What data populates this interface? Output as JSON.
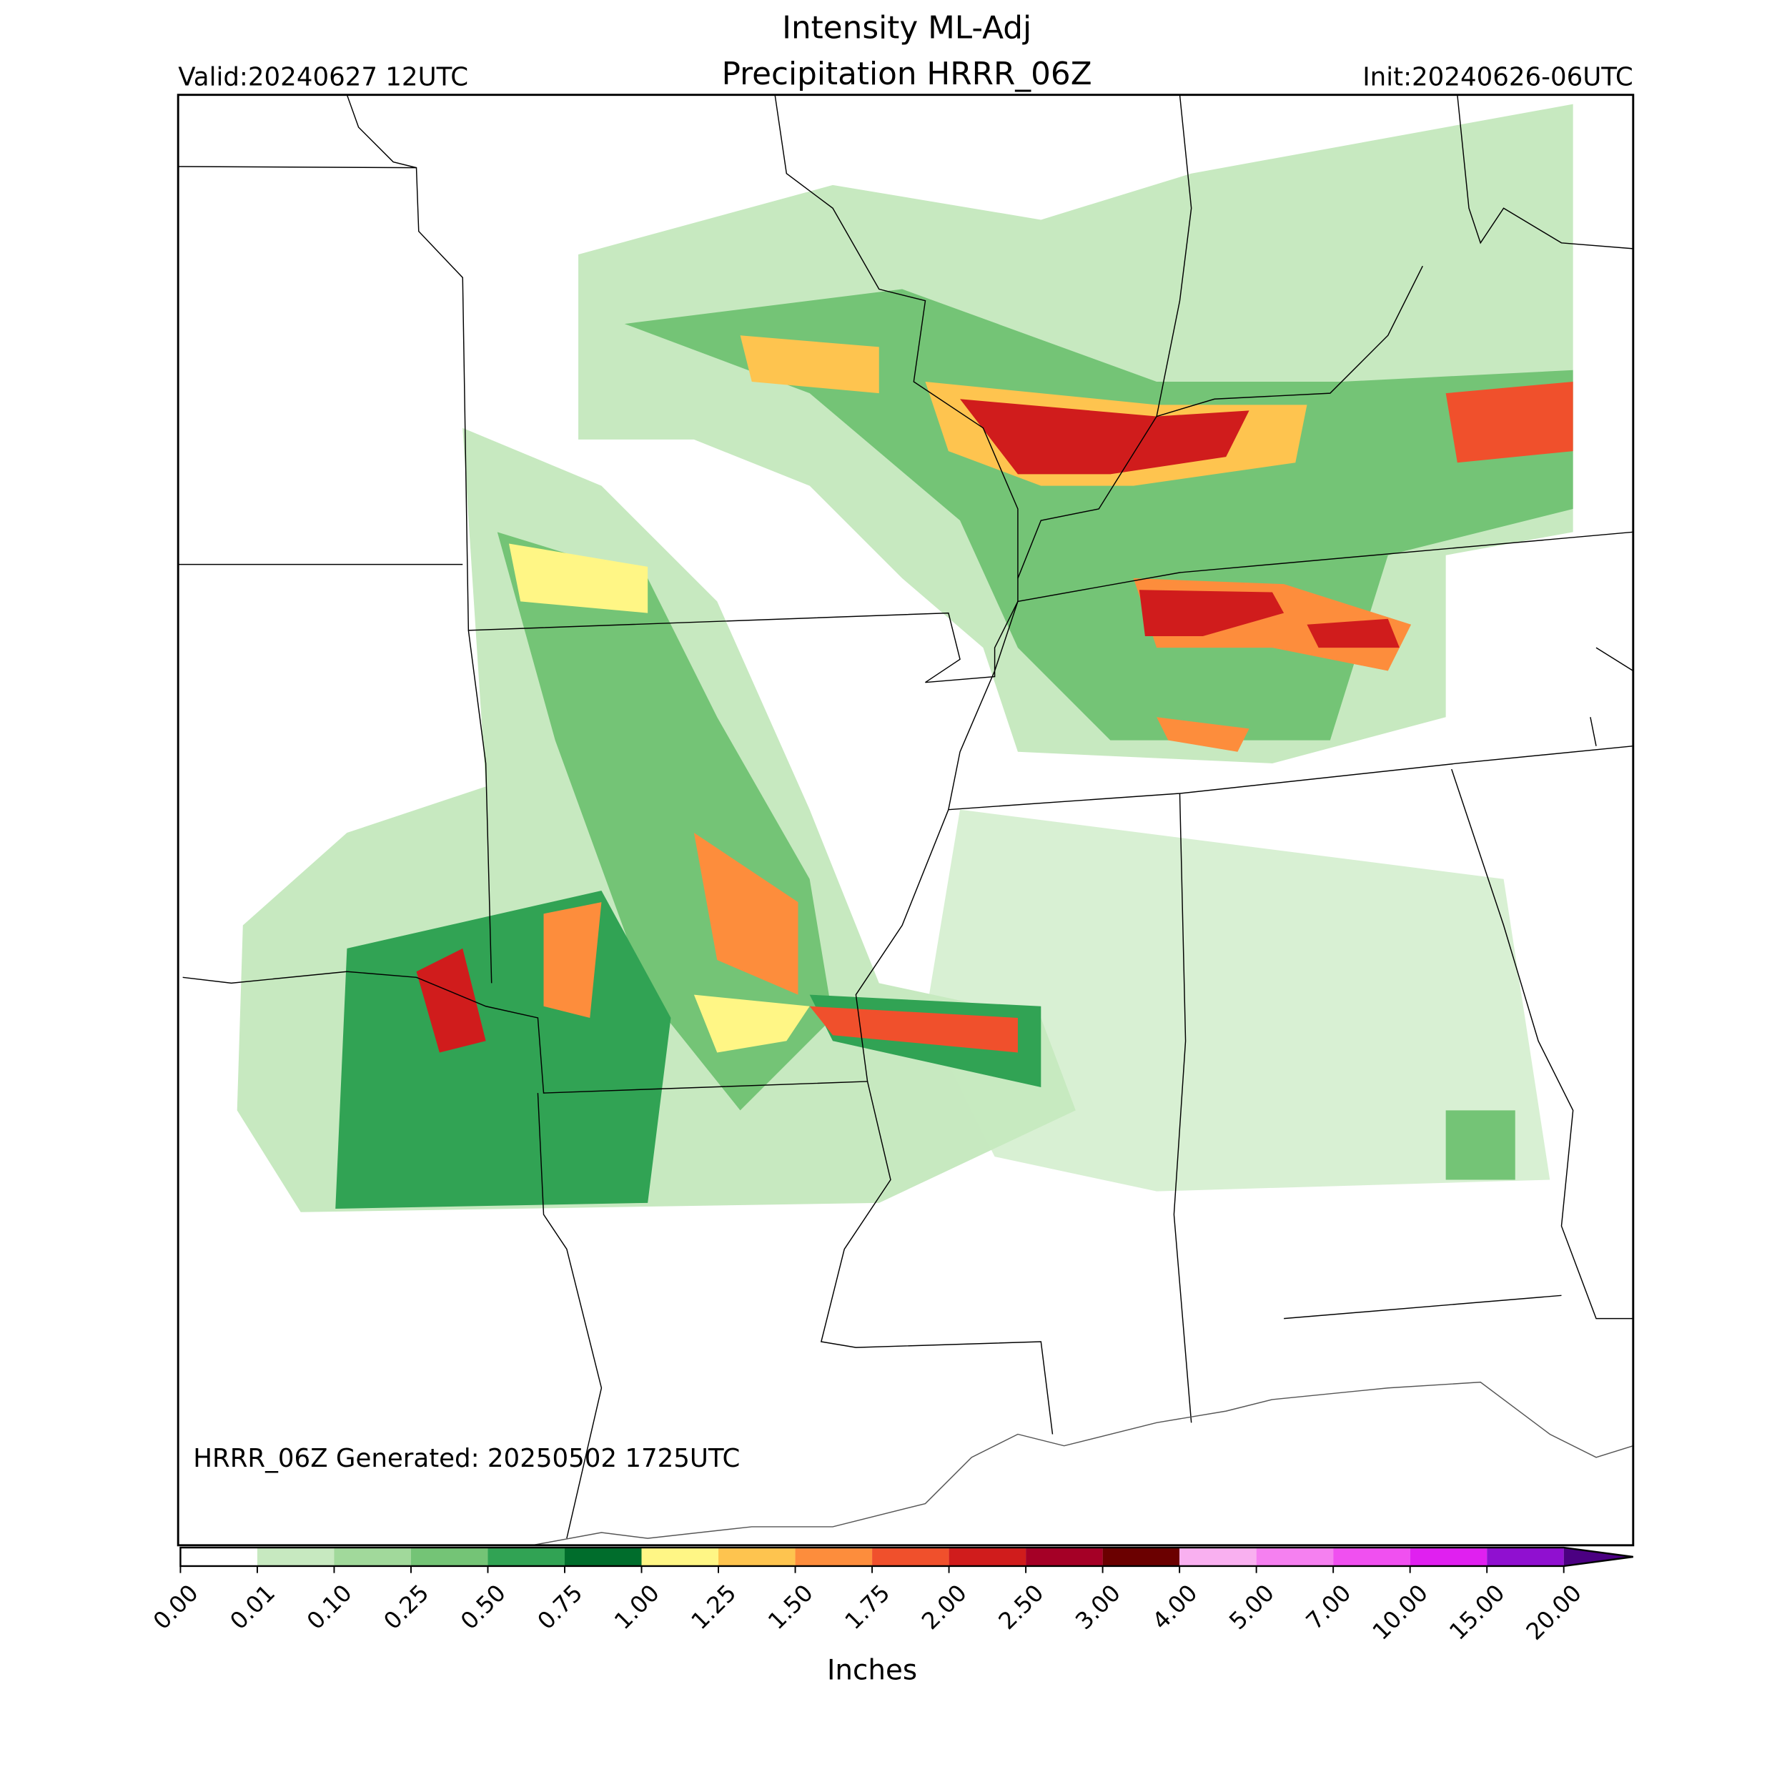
{
  "chart_data": {
    "type": "map",
    "title": "Intensity ML-Adj",
    "subtitle": "Precipitation HRRR_06Z",
    "valid": "Valid:20240627 12UTC",
    "init": "Init:20240626-06UTC",
    "annotation": "HRRR_06Z Generated: 20250502 1725UTC",
    "colorbar": {
      "label": "Inches",
      "ticks": [
        {
          "value": 0,
          "label": "0.00"
        },
        {
          "value": 0.01,
          "label": "0.01"
        },
        {
          "value": 0.1,
          "label": "0.10"
        },
        {
          "value": 0.25,
          "label": "0.25"
        },
        {
          "value": 0.5,
          "label": "0.50"
        },
        {
          "value": 0.75,
          "label": "0.75"
        },
        {
          "value": 1,
          "label": "1.00"
        },
        {
          "value": 1.25,
          "label": "1.25"
        },
        {
          "value": 1.5,
          "label": "1.50"
        },
        {
          "value": 1.75,
          "label": "1.75"
        },
        {
          "value": 2,
          "label": "2.00"
        },
        {
          "value": 2.5,
          "label": "2.50"
        },
        {
          "value": 3,
          "label": "3.00"
        },
        {
          "value": 4,
          "label": "4.00"
        },
        {
          "value": 5,
          "label": "5.00"
        },
        {
          "value": 7,
          "label": "7.00"
        },
        {
          "value": 10,
          "label": "10.00"
        },
        {
          "value": 15,
          "label": "15.00"
        },
        {
          "value": 20,
          "label": "20.00"
        }
      ],
      "colors": [
        "#ffffff",
        "#c7e9c0",
        "#a1d99b",
        "#74c476",
        "#31a354",
        "#006d2c",
        "#fff685",
        "#fec44f",
        "#fd8d3c",
        "#f0502c",
        "#d01c1c",
        "#a50026",
        "#6b0000",
        "#f9b0f0",
        "#f580f0",
        "#f050f0",
        "#e020f0",
        "#9010d0"
      ],
      "extend_color": "#4b0082"
    }
  }
}
